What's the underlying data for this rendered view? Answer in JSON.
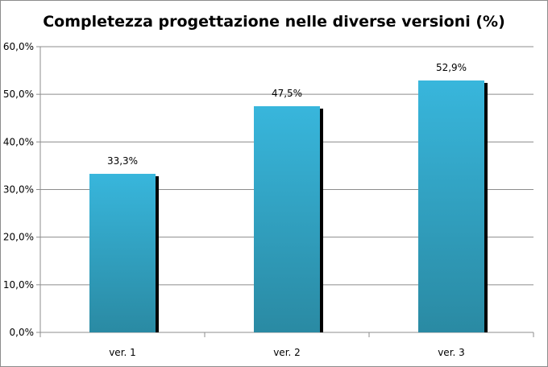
{
  "chart_data": {
    "type": "bar",
    "title": "Completezza progettazione nelle diverse versioni (%)",
    "categories": [
      "ver. 1",
      "ver. 2",
      "ver. 3"
    ],
    "values": [
      33.3,
      47.5,
      52.9
    ],
    "data_labels": [
      "33,3%",
      "47,5%",
      "52,9%"
    ],
    "y_ticks": [
      0,
      10,
      20,
      30,
      40,
      50,
      60
    ],
    "y_tick_labels": [
      "0,0%",
      "10,0%",
      "20,0%",
      "30,0%",
      "40,0%",
      "50,0%",
      "60,0%"
    ],
    "ylim": [
      0,
      60
    ],
    "grid": true,
    "legend": "none",
    "bar_color_top": "#38b6dc",
    "bar_color_bottom": "#2a8aa3",
    "shadow_color": "#000000",
    "gridline_color": "#8c8c8c"
  }
}
